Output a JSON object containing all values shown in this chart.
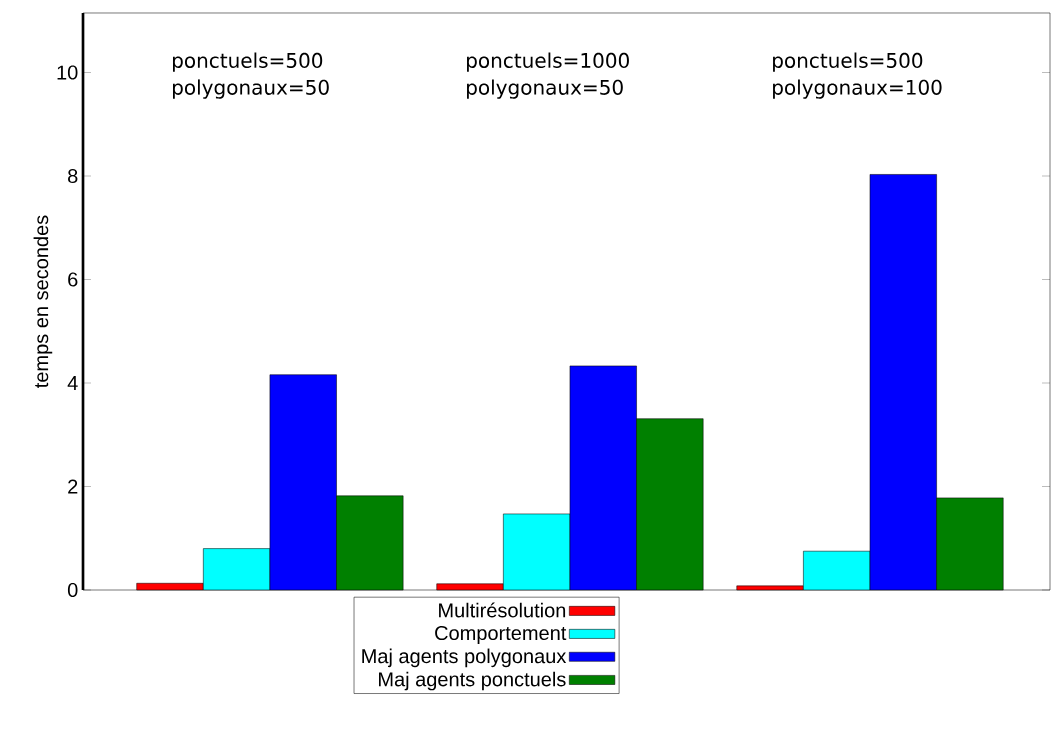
{
  "chart_data": {
    "type": "bar",
    "ylabel": "temps en secondes",
    "categories": [
      null,
      null,
      null
    ],
    "series": [
      {
        "name": "Multirésolution",
        "color": "#ff0000",
        "values": [
          0.13,
          0.12,
          0.08
        ]
      },
      {
        "name": "Comportement",
        "color": "#00ffff",
        "values": [
          0.8,
          1.47,
          0.75
        ]
      },
      {
        "name": "Maj agents polygonaux",
        "color": "#0000ff",
        "values": [
          4.16,
          4.33,
          8.03
        ]
      },
      {
        "name": "Maj agents ponctuels",
        "color": "#008000",
        "values": [
          1.82,
          3.31,
          1.78
        ]
      }
    ],
    "ylim": [
      0,
      11.15
    ],
    "yticks": [
      0,
      2,
      4,
      6,
      8,
      10
    ],
    "annotations": [
      "ponctuels=500",
      "polygonaux=50",
      "ponctuels=1000",
      "polygonaux=50",
      "ponctuels=500",
      "polygonaux=100"
    ],
    "legend": "bottom",
    "grid": false
  }
}
